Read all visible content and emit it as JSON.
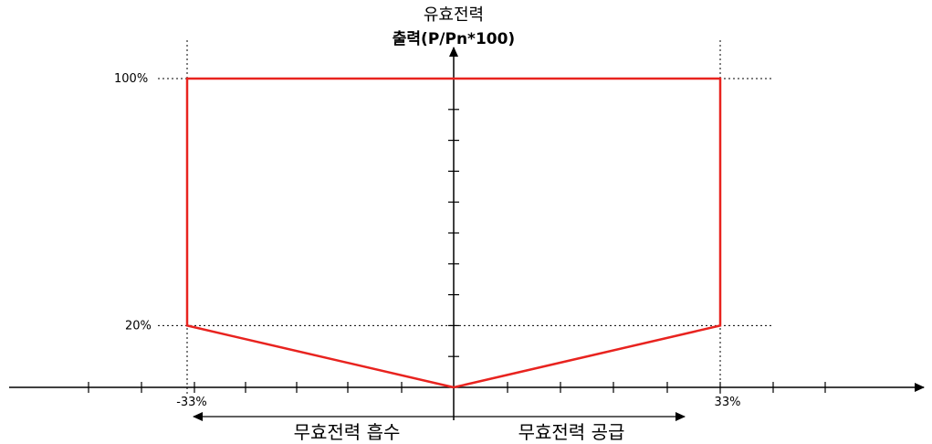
{
  "chart_data": {
    "type": "line",
    "title_line1": "유효전력",
    "title_line2": "출력(P/Pn*100)",
    "y_ticks": {
      "top": "100%",
      "bottom": "20%"
    },
    "x_ticks": {
      "left": "-33%",
      "right": "33%"
    },
    "left_arrow_label": "무효전력 흡수",
    "right_arrow_label": "무효전력 공급",
    "series": [
      {
        "points": [
          {
            "x": 0,
            "y": 0
          },
          {
            "x": -33,
            "y": 20
          },
          {
            "x": -33,
            "y": 100
          },
          {
            "x": 33,
            "y": 100
          },
          {
            "x": 33,
            "y": 20
          },
          {
            "x": 0,
            "y": 0
          }
        ]
      }
    ],
    "xlim": [
      -33,
      33
    ],
    "ylim": [
      0,
      100
    ],
    "line_color": "#e8231f"
  }
}
